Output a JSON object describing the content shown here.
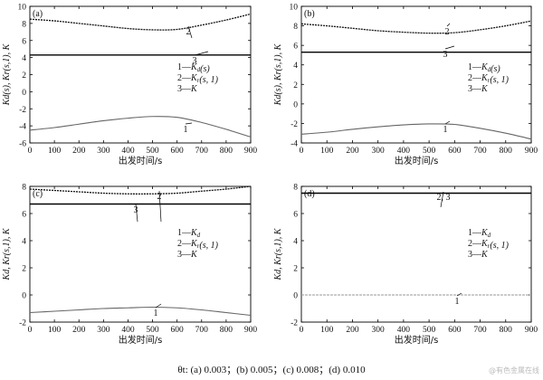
{
  "chart_data": [
    {
      "type": "line",
      "panel_label": "(a)",
      "xlabel": "出发时间/s",
      "ylabel": "Kd(s), Kr(s,1), K",
      "xlim": [
        0,
        900
      ],
      "ylim": [
        -6,
        10
      ],
      "xticks": [
        "0",
        "100",
        "200",
        "300",
        "400",
        "500",
        "600",
        "700",
        "800",
        "900"
      ],
      "yticks": [
        "-6",
        "-4",
        "-2",
        "0",
        "2",
        "4",
        "6",
        "8",
        "10"
      ],
      "legend": [
        "1—Kd(s)",
        "2—Kr(s, 1)",
        "3—K"
      ],
      "curve_labels": [
        "1",
        "2",
        "3"
      ],
      "series": [
        {
          "x": [
            0,
            100,
            200,
            300,
            400,
            500,
            600,
            700,
            800,
            900
          ],
          "y": [
            -4.5,
            -4.2,
            -3.8,
            -3.4,
            -3.1,
            -2.9,
            -3.0,
            -3.6,
            -4.4,
            -5.3
          ]
        },
        {
          "x": [
            0,
            100,
            200,
            300,
            400,
            500,
            600,
            700,
            800,
            900
          ],
          "y": [
            8.5,
            8.3,
            8.0,
            7.7,
            7.4,
            7.25,
            7.3,
            7.8,
            8.4,
            9.1
          ]
        },
        {
          "x": [
            0,
            900
          ],
          "y": [
            4.3,
            4.3
          ]
        }
      ]
    },
    {
      "type": "line",
      "panel_label": "(b)",
      "xlabel": "出发时间/s",
      "ylabel": "Kd(s), Kr(s,1), K",
      "xlim": [
        0,
        900
      ],
      "ylim": [
        -4,
        10
      ],
      "xticks": [
        "0",
        "100",
        "200",
        "300",
        "400",
        "500",
        "600",
        "700",
        "800",
        "900"
      ],
      "yticks": [
        "-4",
        "-2",
        "0",
        "2",
        "4",
        "6",
        "8",
        "10"
      ],
      "legend": [
        "1—Kd(s)",
        "2—Kr(s, 1)",
        "3—K"
      ],
      "curve_labels": [
        "1",
        "2",
        "3"
      ],
      "series": [
        {
          "x": [
            0,
            100,
            200,
            300,
            400,
            500,
            600,
            700,
            800,
            900
          ],
          "y": [
            -3.1,
            -2.9,
            -2.6,
            -2.35,
            -2.15,
            -2.05,
            -2.1,
            -2.5,
            -3.0,
            -3.6
          ]
        },
        {
          "x": [
            0,
            100,
            200,
            300,
            400,
            500,
            600,
            700,
            800,
            900
          ],
          "y": [
            8.2,
            8.0,
            7.75,
            7.5,
            7.35,
            7.25,
            7.3,
            7.6,
            8.0,
            8.5
          ]
        },
        {
          "x": [
            0,
            900
          ],
          "y": [
            5.3,
            5.3
          ]
        }
      ]
    },
    {
      "type": "line",
      "panel_label": "(c)",
      "xlabel": "出发时间/s",
      "ylabel": "Kd, Kr(s,1), K",
      "xlim": [
        0,
        900
      ],
      "ylim": [
        -2,
        8
      ],
      "xticks": [
        "0",
        "100",
        "200",
        "300",
        "400",
        "500",
        "600",
        "700",
        "800",
        "900"
      ],
      "yticks": [
        "-2",
        "0",
        "2",
        "4",
        "6",
        "8"
      ],
      "legend": [
        "1—Kd",
        "2—Kr(s, 1)",
        "3—K"
      ],
      "curve_labels": [
        "1",
        "2",
        "3"
      ],
      "series": [
        {
          "x": [
            0,
            100,
            200,
            300,
            400,
            500,
            600,
            700,
            800,
            900
          ],
          "y": [
            -1.3,
            -1.2,
            -1.1,
            -1.0,
            -0.95,
            -0.9,
            -0.95,
            -1.1,
            -1.3,
            -1.5
          ]
        },
        {
          "x": [
            0,
            100,
            200,
            300,
            400,
            500,
            600,
            700,
            800,
            900
          ],
          "y": [
            7.8,
            7.7,
            7.6,
            7.5,
            7.45,
            7.45,
            7.5,
            7.65,
            7.8,
            8.0
          ]
        },
        {
          "x": [
            0,
            900
          ],
          "y": [
            6.7,
            6.7
          ]
        }
      ]
    },
    {
      "type": "line",
      "panel_label": "(d)",
      "xlabel": "出发时间/s",
      "ylabel": "Kd, Kr(s,1), K",
      "xlim": [
        0,
        900
      ],
      "ylim": [
        -2,
        8
      ],
      "xticks": [
        "0",
        "100",
        "200",
        "300",
        "400",
        "500",
        "600",
        "700",
        "800",
        "900"
      ],
      "yticks": [
        "-2",
        "0",
        "2",
        "4",
        "6",
        "8"
      ],
      "legend": [
        "1—Kd",
        "2—Kr(s, 1)",
        "3—K"
      ],
      "curve_labels": [
        "1",
        "2, 3"
      ],
      "series": [
        {
          "x": [
            0,
            900
          ],
          "y": [
            0,
            0
          ]
        },
        {
          "x": [
            0,
            900
          ],
          "y": [
            7.5,
            7.5
          ]
        }
      ]
    }
  ],
  "caption": "θt: (a) 0.003；(b) 0.005；(c) 0.008；(d) 0.010",
  "watermark": "@有色金属在线"
}
